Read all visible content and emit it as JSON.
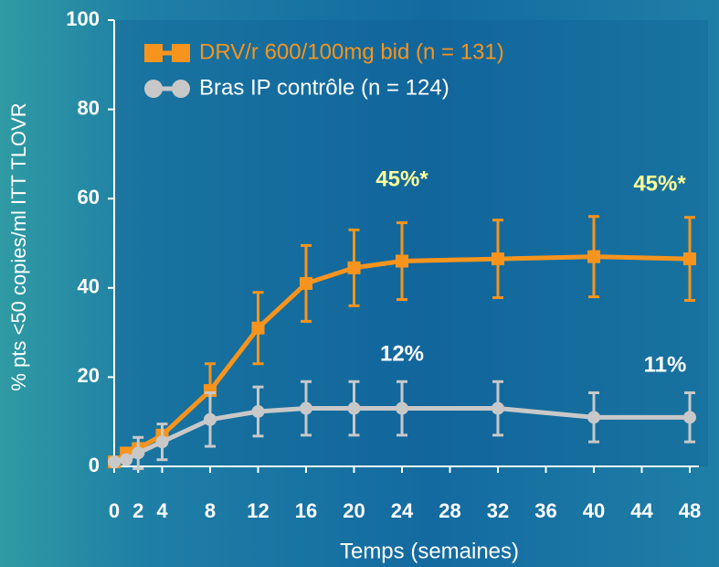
{
  "chart_data": {
    "type": "line",
    "x_label": "Temps (semaines)",
    "y_label": "% pts <50 copies/ml ITT TLOVR",
    "x": [
      0,
      1,
      2,
      4,
      8,
      12,
      16,
      20,
      24,
      32,
      40,
      48
    ],
    "series": [
      {
        "name": "DRV/r 600/100mg bid (n = 131)",
        "color": "#f7941d",
        "marker": "square",
        "values": [
          1,
          3,
          4,
          7,
          17,
          31,
          41,
          44.5,
          46,
          46.5,
          47,
          46.5
        ],
        "errors": [
          0,
          0,
          0,
          0,
          6,
          8,
          8.5,
          8.5,
          8.6,
          8.7,
          9,
          9.3
        ]
      },
      {
        "name": "Bras IP contrôle (n = 124)",
        "color": "#c8c8c8",
        "marker": "circle",
        "values": [
          1,
          1.5,
          3,
          5.5,
          10.5,
          12.3,
          13,
          13,
          13,
          13,
          11,
          11
        ],
        "errors": [
          0,
          0,
          3.5,
          4,
          6,
          5.5,
          6,
          6,
          6,
          6,
          5.5,
          5.5
        ]
      }
    ],
    "annotations": [
      "45%*",
      "45%*",
      "12%",
      "11%"
    ],
    "xlim": [
      0,
      48
    ],
    "xticks": [
      0,
      2,
      4,
      8,
      12,
      16,
      20,
      24,
      28,
      32,
      36,
      40,
      44,
      48
    ],
    "ylim": [
      0,
      100
    ],
    "yticks": [
      0,
      20,
      40,
      60,
      80,
      100
    ],
    "grid": false
  }
}
